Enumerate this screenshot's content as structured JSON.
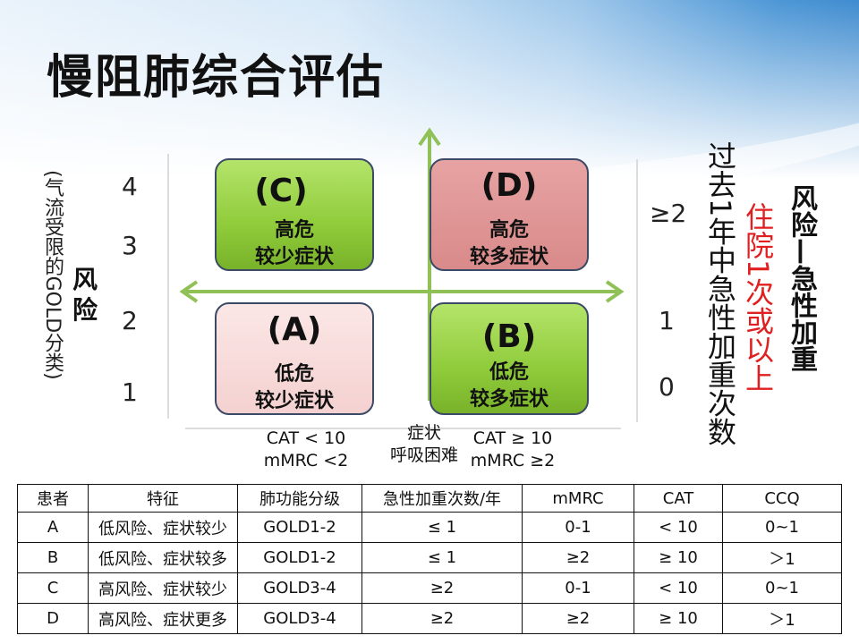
{
  "title": "慢阻肺综合评估",
  "left_axis": {
    "risk_label": "风险",
    "gold_label": "(气流受限的GOLD分类)",
    "ticks": [
      "4",
      "3",
      "2",
      "1"
    ]
  },
  "quadrants": {
    "C": {
      "letter": "(C)",
      "line1": "高危",
      "line2": "较少症状"
    },
    "D": {
      "letter": "(D)",
      "line1": "高危",
      "line2": "较多症状"
    },
    "A": {
      "letter": "(A)",
      "line1": "低危",
      "line2": "较少症状"
    },
    "B": {
      "letter": "(B)",
      "line1": "低危",
      "line2": "较多症状"
    }
  },
  "x_axis": {
    "left_line1": "CAT < 10",
    "left_line2": "mMRC <2",
    "mid_line1": "症状",
    "mid_line2": "呼吸困难",
    "right_line1": "CAT ≥ 10",
    "right_line2": "mMRC ≥2"
  },
  "right_axis": {
    "ticks": [
      "≥2",
      "1",
      "0"
    ],
    "exacerbation_label": "过去1年中急性加重次数",
    "hospital_label": "住院1次或以上",
    "risk_label": "风险—急性加重"
  },
  "table": {
    "headers": [
      "患者",
      "特征",
      "肺功能分级",
      "急性加重次数/年",
      "mMRC",
      "CAT",
      "CCQ"
    ],
    "rows": [
      [
        "A",
        "低风险、症状较少",
        "GOLD1-2",
        "≤ 1",
        "0-1",
        "< 10",
        "0~1"
      ],
      [
        "B",
        "低风险、症状较多",
        "GOLD1-2",
        "≤ 1",
        "≥2",
        "≥ 10",
        "＞1"
      ],
      [
        "C",
        "高风险、症状较少",
        "GOLD3-4",
        "≥2",
        "0-1",
        "< 10",
        "0~1"
      ],
      [
        "D",
        "高风险、症状更多",
        "GOLD3-4",
        "≥2",
        "≥2",
        "≥ 10",
        "＞1"
      ]
    ]
  },
  "colors": {
    "quadrant_green": "#8fcb3a",
    "quadrant_red": "#d98a8a",
    "quadrant_pink": "#f4d1d0",
    "arrow_green": "#8fc157",
    "hospital_red": "#e02020"
  }
}
